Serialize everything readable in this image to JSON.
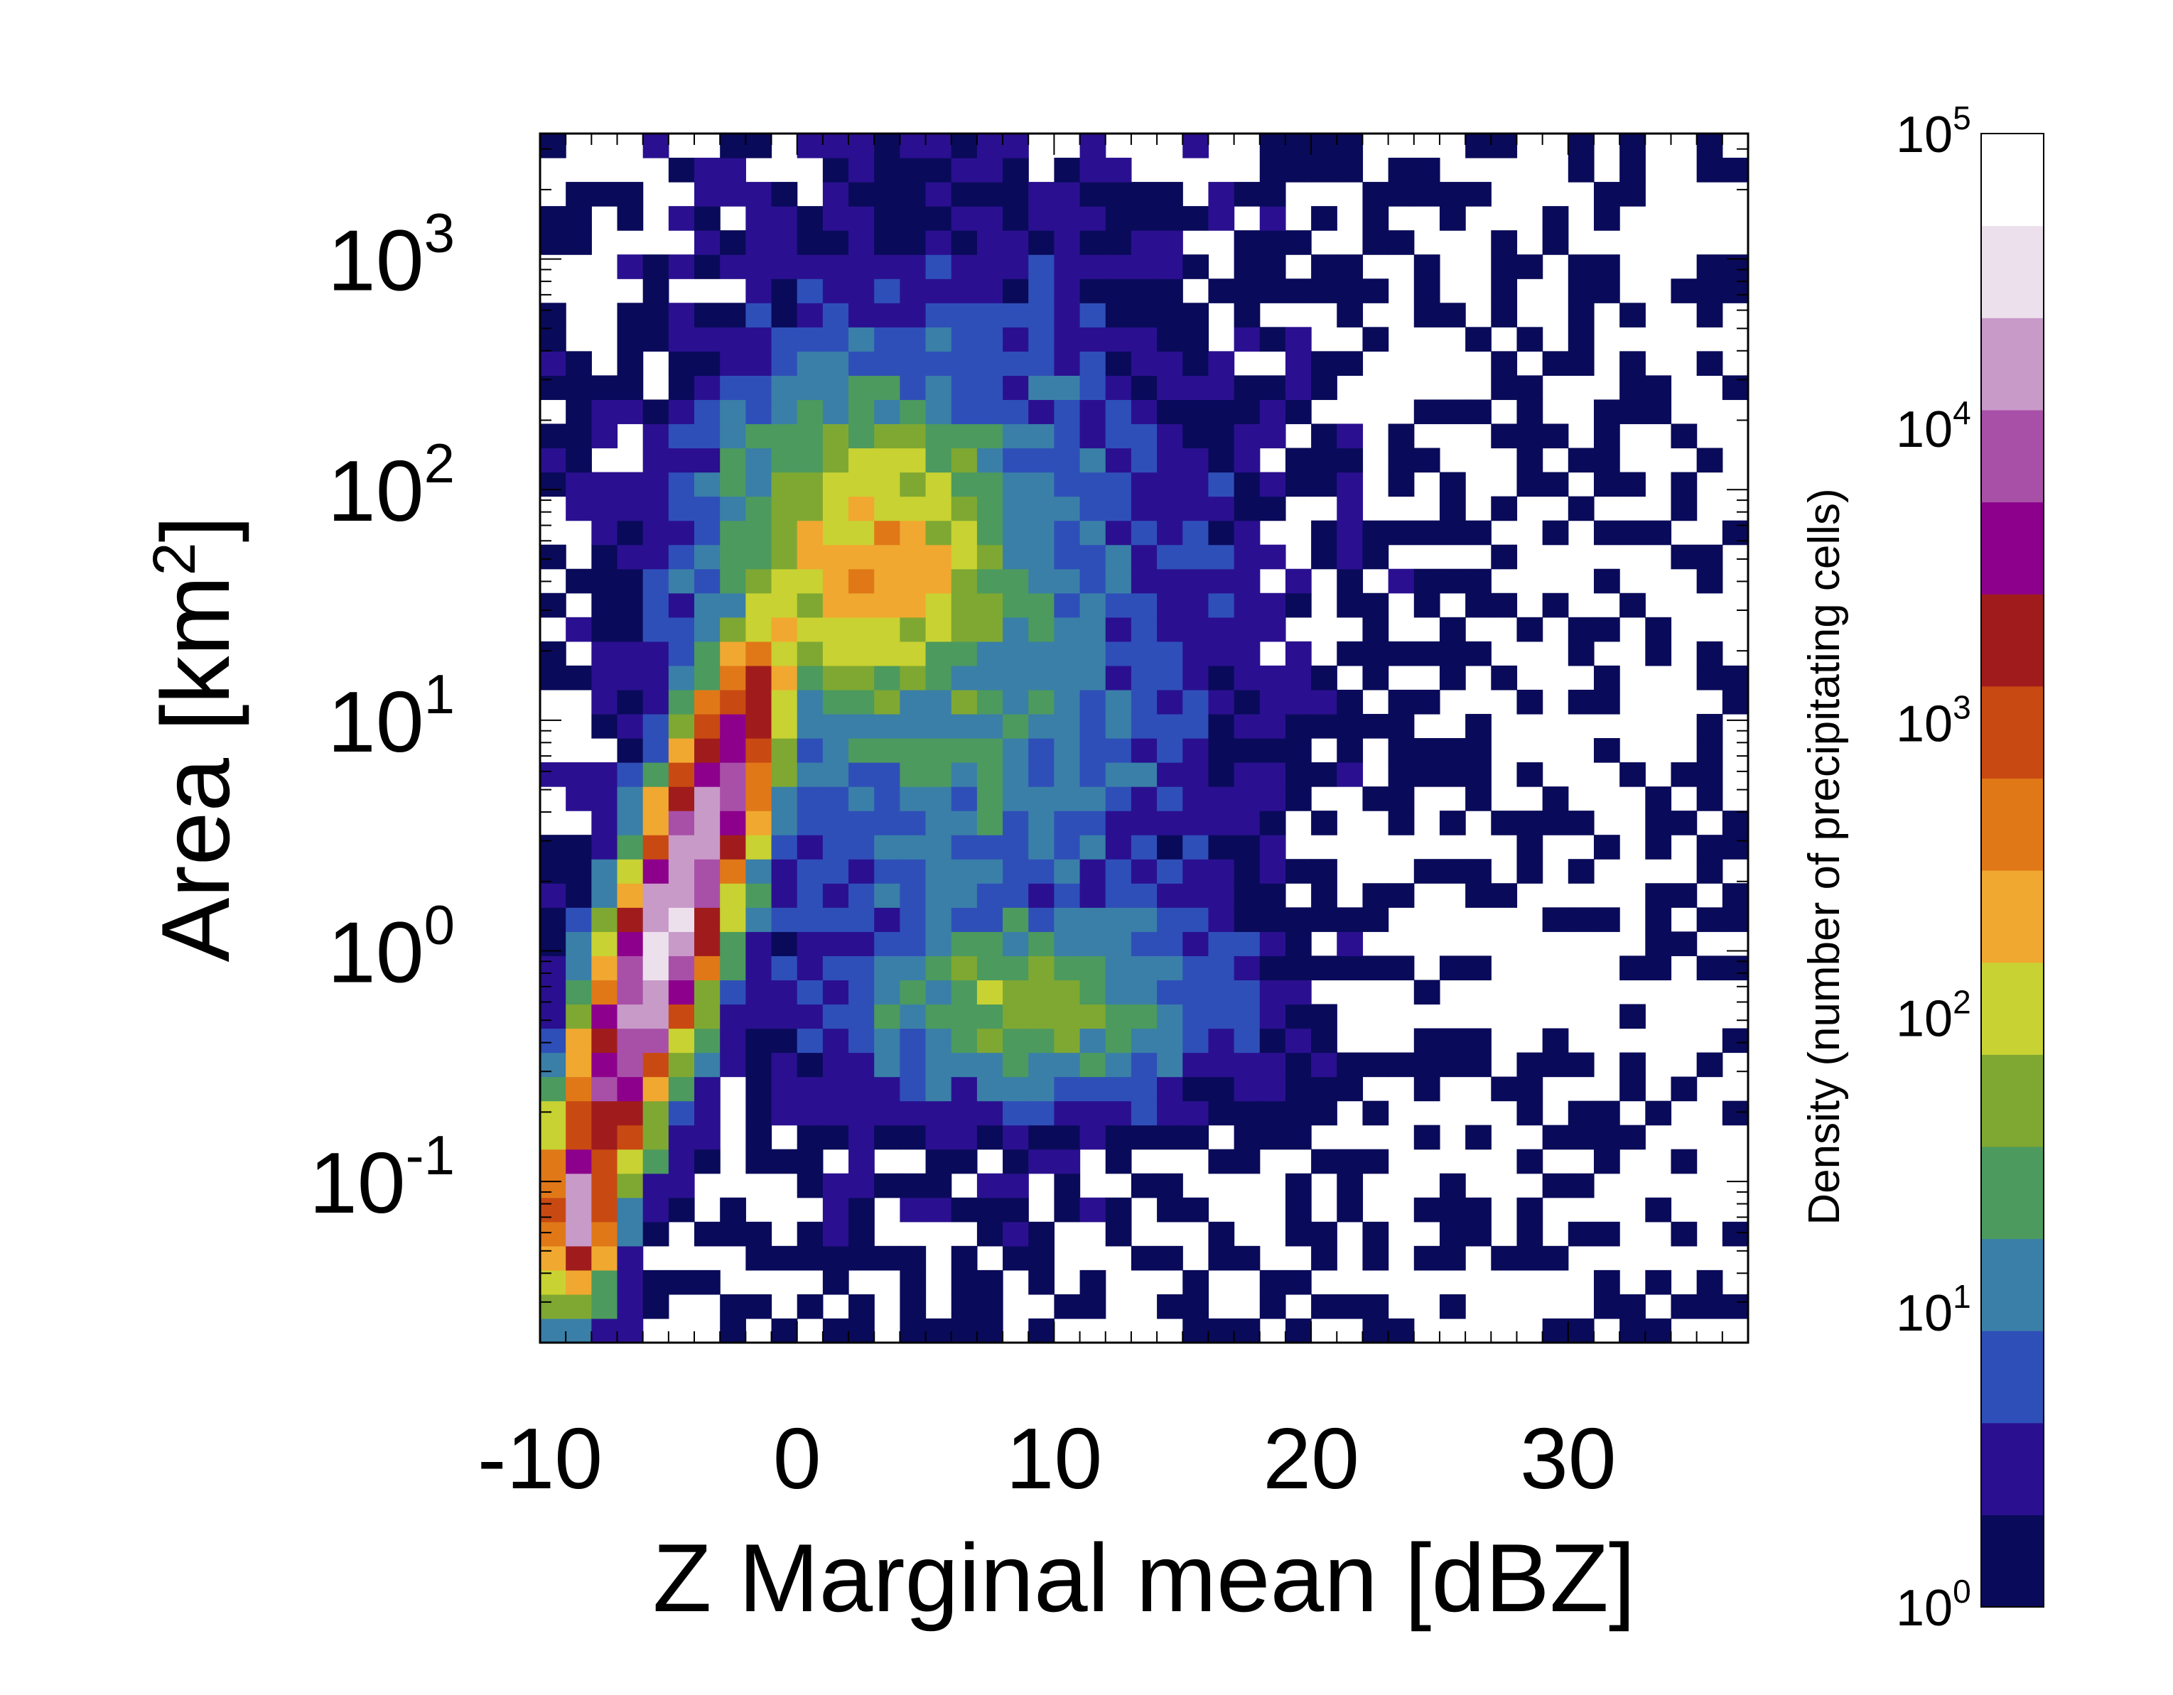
{
  "chart_data": {
    "type": "heatmap",
    "title": "",
    "xlabel": "Z Marginal mean [dBZ]",
    "ylabel_base": "Area [km",
    "ylabel_sup": "2",
    "ylabel_end": "]",
    "x_scale": "linear",
    "y_scale": "log",
    "xlim": [
      -10,
      37
    ],
    "ylim": [
      0.02,
      3500
    ],
    "x_ticks": [
      -10,
      0,
      10,
      20,
      30
    ],
    "x_tick_labels": [
      "-10",
      "0",
      "10",
      "20",
      "30"
    ],
    "y_ticks": [
      0.1,
      1,
      10,
      100,
      1000
    ],
    "y_tick_labels": [
      {
        "base": "10",
        "exp": "-1"
      },
      {
        "base": "10",
        "exp": "0"
      },
      {
        "base": "10",
        "exp": "1"
      },
      {
        "base": "10",
        "exp": "2"
      },
      {
        "base": "10",
        "exp": "3"
      }
    ],
    "grid": false,
    "colorbar": {
      "label": "Density (number of precipitating cells)",
      "scale": "log",
      "range": [
        1,
        100000
      ],
      "tick_values": [
        1,
        10,
        100,
        1000,
        10000,
        100000
      ],
      "tick_labels": [
        {
          "base": "10",
          "exp": "0"
        },
        {
          "base": "10",
          "exp": "1"
        },
        {
          "base": "10",
          "exp": "2"
        },
        {
          "base": "10",
          "exp": "3"
        },
        {
          "base": "10",
          "exp": "4"
        },
        {
          "base": "10",
          "exp": "5"
        }
      ],
      "colors": [
        "#0a0a5a",
        "#2a1090",
        "#2f4fb8",
        "#3a7fa8",
        "#4c9a5e",
        "#7fa832",
        "#c8d232",
        "#f0a830",
        "#e07818",
        "#c84a12",
        "#a01c1c",
        "#8c008c",
        "#a850a8",
        "#c89ac8",
        "#ece0ec",
        "#ffffff"
      ]
    },
    "density_description": "2D histogram of precipitating cell counts; highest densities near -8 dBZ at small areas, a broad band following area increasing with Z up to about 0 dBZ, a secondary lobe near 10 dBZ at areas around 1 to 100 km2, sparse counts at high Z."
  }
}
